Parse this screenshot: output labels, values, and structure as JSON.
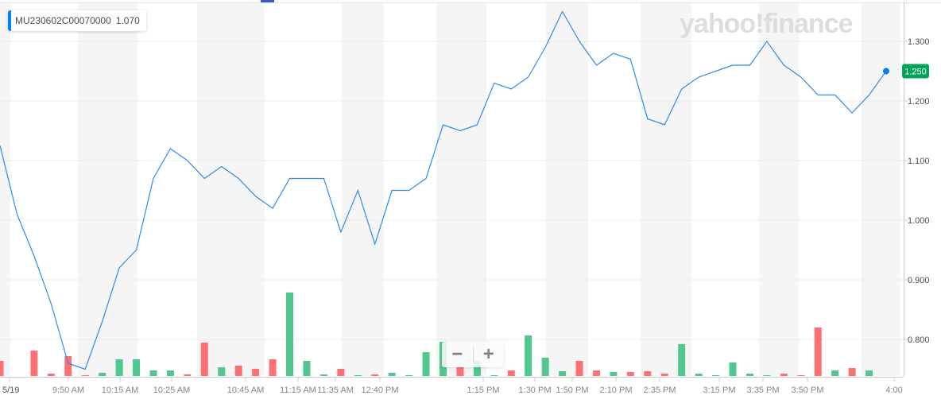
{
  "legend": {
    "symbol": "MU230602C00070000",
    "value": "1.070",
    "color": "#0081f2"
  },
  "logo": "yahoo!finance",
  "zoom_controls": {
    "zoom_out": "−",
    "zoom_in": "+"
  },
  "chart_data": {
    "type": "line",
    "title": "",
    "xlabel": "",
    "ylabel": "",
    "ylim": [
      0.74,
      1.36
    ],
    "grid": true,
    "y_ticks": [
      "1.300",
      "1.200",
      "1.100",
      "1.000",
      "0.900",
      "0.800"
    ],
    "x_ticks": [
      "5/19",
      "9:50 AM",
      "10:15 AM",
      "10:25 AM",
      "10:45 AM",
      "11:15 AM",
      "11:35 AM",
      "12:40 PM",
      "1:15 PM",
      "1:30 PM",
      "1:50 PM",
      "2:10 PM",
      "2:35 PM",
      "3:15 PM",
      "3:35 PM",
      "3:50 PM",
      "4:00"
    ],
    "current_price_label": "1.250",
    "series": [
      {
        "values": [
          1.125,
          1.01,
          0.94,
          0.86,
          0.76,
          0.75,
          0.83,
          0.92,
          0.95,
          1.07,
          1.12,
          1.1,
          1.07,
          1.09,
          1.07,
          1.04,
          1.02,
          1.07,
          1.07,
          1.07,
          0.98,
          1.05,
          0.96,
          1.05,
          1.05,
          1.07,
          1.16,
          1.15,
          1.16,
          1.23,
          1.22,
          1.24,
          1.29,
          1.35,
          1.3,
          1.26,
          1.28,
          1.27,
          1.17,
          1.16,
          1.22,
          1.24,
          1.25,
          1.26,
          1.26,
          1.3,
          1.26,
          1.24,
          1.21,
          1.21,
          1.18,
          1.21,
          1.25
        ]
      }
    ],
    "volume": {
      "values": [
        19,
        0,
        32,
        3,
        25,
        1,
        4,
        21,
        21,
        7,
        7,
        2,
        42,
        11,
        13,
        9,
        21,
        105,
        19,
        2,
        9,
        1,
        2,
        4,
        1,
        30,
        43,
        11,
        19,
        1,
        7,
        51,
        23,
        6,
        19,
        7,
        5,
        5,
        6,
        3,
        40,
        3,
        1,
        17,
        3,
        1,
        3,
        1,
        61,
        7,
        10,
        7,
        0
      ],
      "direction": [
        "down",
        "none",
        "down",
        "down",
        "down",
        "down",
        "up",
        "up",
        "up",
        "up",
        "up",
        "down",
        "down",
        "up",
        "down",
        "down",
        "down",
        "up",
        "up",
        "up",
        "down",
        "up",
        "down",
        "up",
        "up",
        "up",
        "up",
        "down",
        "up",
        "up",
        "down",
        "up",
        "up",
        "up",
        "down",
        "down",
        "up",
        "down",
        "down",
        "down",
        "up",
        "up",
        "up",
        "up",
        "up",
        "up",
        "down",
        "down",
        "down",
        "up",
        "down",
        "up",
        "none"
      ]
    },
    "colors": {
      "line": "#2b8ce8",
      "up": "#4fc78f",
      "down": "#ff7074",
      "current_price_bg": "#00a35b",
      "band": "#f5f5f5"
    }
  }
}
